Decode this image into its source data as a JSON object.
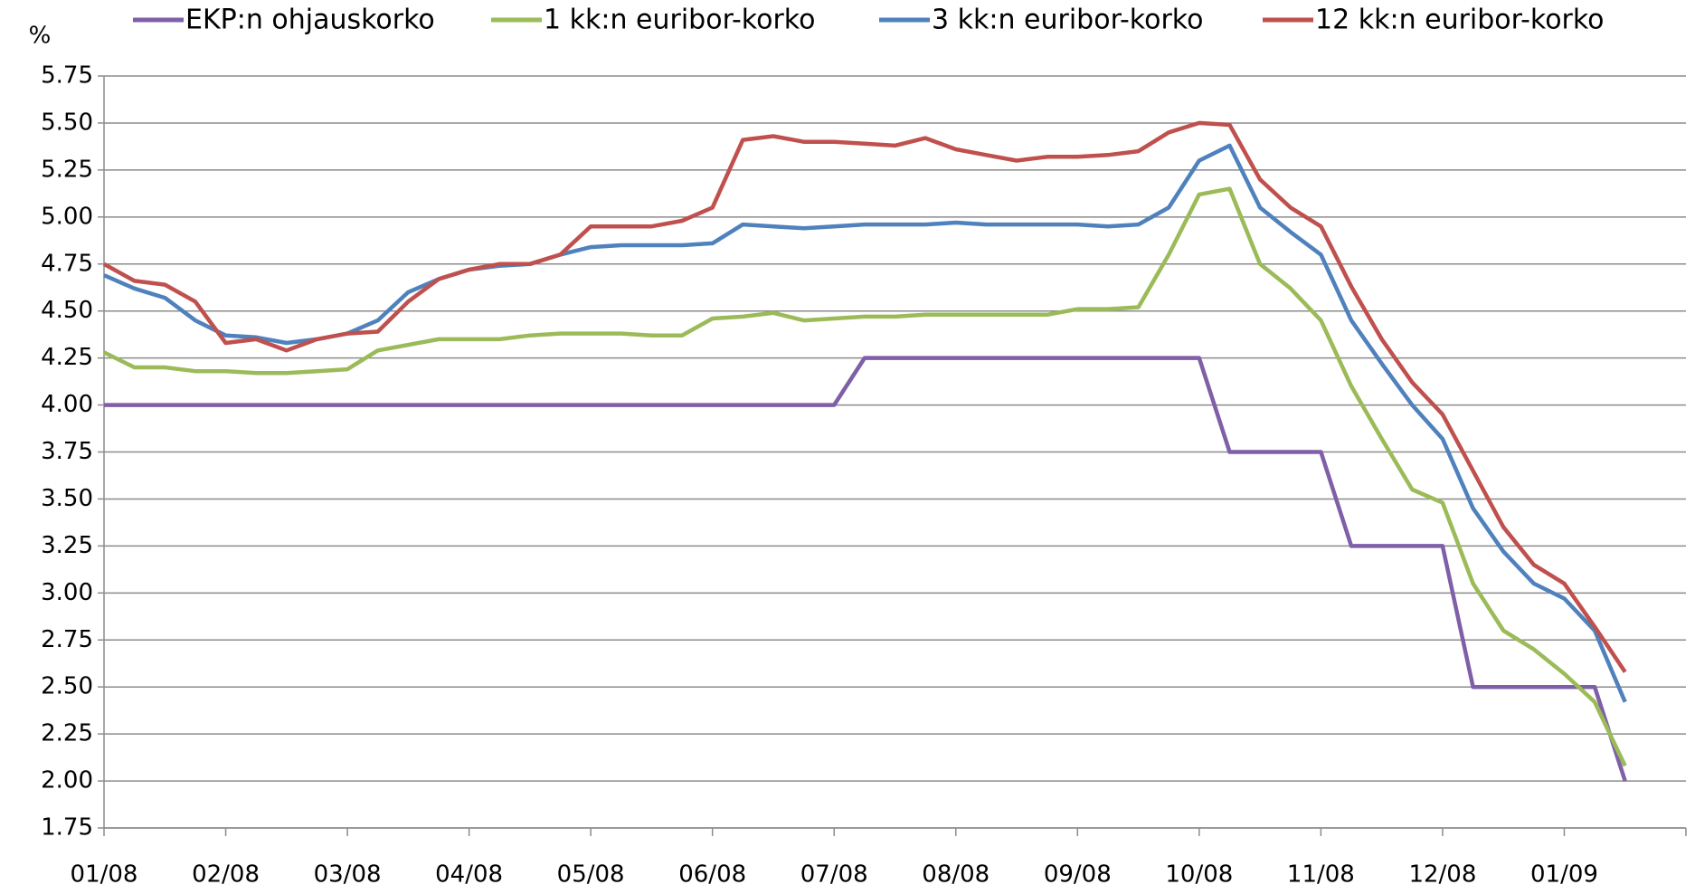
{
  "chart_data": {
    "type": "line",
    "y_label": "%",
    "categories": [
      "01/08",
      null,
      null,
      null,
      "02/08",
      null,
      null,
      null,
      "03/08",
      null,
      null,
      null,
      "04/08",
      null,
      null,
      null,
      "05/08",
      null,
      null,
      null,
      "06/08",
      null,
      null,
      null,
      "07/08",
      null,
      null,
      null,
      "08/08",
      null,
      null,
      null,
      "09/08",
      null,
      null,
      null,
      "10/08",
      null,
      null,
      null,
      "11/08",
      null,
      null,
      null,
      "12/08",
      null,
      null,
      null,
      "01/09",
      null,
      null,
      null,
      null
    ],
    "series": [
      {
        "name": "EKP:n ohjauskorko",
        "color": "#7f5fa7",
        "values": [
          4.0,
          4.0,
          4.0,
          4.0,
          4.0,
          4.0,
          4.0,
          4.0,
          4.0,
          4.0,
          4.0,
          4.0,
          4.0,
          4.0,
          4.0,
          4.0,
          4.0,
          4.0,
          4.0,
          4.0,
          4.0,
          4.0,
          4.0,
          4.0,
          4.0,
          4.25,
          4.25,
          4.25,
          4.25,
          4.25,
          4.25,
          4.25,
          4.25,
          4.25,
          4.25,
          4.25,
          4.25,
          3.75,
          3.75,
          3.75,
          3.75,
          3.25,
          3.25,
          3.25,
          3.25,
          2.5,
          2.5,
          2.5,
          2.5,
          2.5,
          2.0,
          null,
          null
        ]
      },
      {
        "name": "1 kk:n euribor-korko",
        "color": "#9bbb59",
        "values": [
          4.28,
          4.2,
          4.2,
          4.18,
          4.18,
          4.17,
          4.17,
          4.18,
          4.19,
          4.29,
          4.32,
          4.35,
          4.35,
          4.35,
          4.37,
          4.38,
          4.38,
          4.38,
          4.37,
          4.37,
          4.46,
          4.47,
          4.49,
          4.45,
          4.46,
          4.47,
          4.47,
          4.48,
          4.48,
          4.48,
          4.48,
          4.48,
          4.51,
          4.51,
          4.52,
          4.8,
          5.12,
          5.15,
          4.75,
          4.62,
          4.45,
          4.1,
          3.82,
          3.55,
          3.48,
          3.05,
          2.8,
          2.7,
          2.57,
          2.42,
          2.08,
          null,
          null
        ]
      },
      {
        "name": "3 kk:n euribor-korko",
        "color": "#4f81bd",
        "values": [
          4.69,
          4.62,
          4.57,
          4.45,
          4.37,
          4.36,
          4.33,
          4.35,
          4.38,
          4.45,
          4.6,
          4.67,
          4.72,
          4.74,
          4.75,
          4.8,
          4.84,
          4.85,
          4.85,
          4.85,
          4.86,
          4.96,
          4.95,
          4.94,
          4.95,
          4.96,
          4.96,
          4.96,
          4.97,
          4.96,
          4.96,
          4.96,
          4.96,
          4.95,
          4.96,
          5.05,
          5.3,
          5.38,
          5.05,
          4.92,
          4.8,
          4.45,
          4.22,
          4.0,
          3.82,
          3.45,
          3.22,
          3.05,
          2.97,
          2.8,
          2.42,
          null,
          null
        ]
      },
      {
        "name": "12 kk:n euribor-korko",
        "color": "#c0504d",
        "values": [
          4.75,
          4.66,
          4.64,
          4.55,
          4.33,
          4.35,
          4.29,
          4.35,
          4.38,
          4.39,
          4.55,
          4.67,
          4.72,
          4.75,
          4.75,
          4.8,
          4.95,
          4.95,
          4.95,
          4.98,
          5.05,
          5.41,
          5.43,
          5.4,
          5.4,
          5.39,
          5.38,
          5.42,
          5.36,
          5.33,
          5.3,
          5.32,
          5.32,
          5.33,
          5.35,
          5.45,
          5.5,
          5.49,
          5.2,
          5.05,
          4.95,
          4.63,
          4.35,
          4.12,
          3.95,
          3.65,
          3.35,
          3.15,
          3.05,
          2.82,
          2.58,
          null,
          null
        ]
      }
    ],
    "ylim": [
      1.75,
      5.75
    ],
    "yticks": [
      1.75,
      {
        "value": 2.0,
        "label": "2.00"
      },
      2.25,
      {
        "value": 2.5,
        "label": "2.50"
      },
      2.75,
      {
        "value": 3.0,
        "label": "3.00"
      },
      3.25,
      {
        "value": 3.5,
        "label": "3.50"
      },
      3.75,
      {
        "value": 4.0,
        "label": "4.00"
      },
      4.25,
      {
        "value": 4.5,
        "label": "4.50"
      },
      4.75,
      {
        "value": 5.0,
        "label": "5.00"
      },
      5.25,
      {
        "value": 5.5,
        "label": "5.50"
      },
      5.75
    ],
    "grid": true,
    "legend": "top"
  }
}
